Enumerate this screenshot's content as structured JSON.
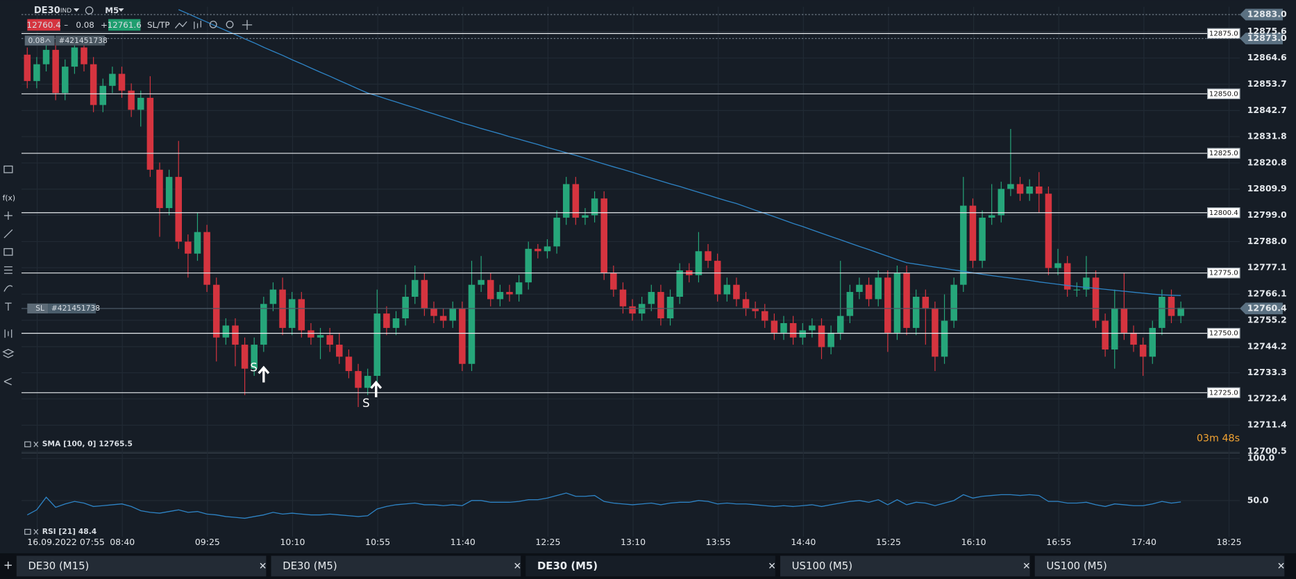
{
  "toolbar": {
    "symbol": "DE30",
    "market": "IND",
    "timeframe": "M5",
    "sell": "12760.4",
    "volume": "0.08",
    "buy": "12761.6",
    "sltp": "SL/TP",
    "position": "0.08",
    "position_id": "#421451738",
    "fx": "f(x)"
  },
  "chart_data": {
    "type": "candlestick",
    "colors": {
      "up": "#26a67a",
      "down": "#d5343f",
      "sma": "#2e84c6",
      "rsi": "#2e84c6",
      "price_line": "#e8ecef",
      "countdown": "#f0a232"
    },
    "ylim": [
      12700,
      12886
    ],
    "yticks": [
      12875.6,
      12864.6,
      12853.7,
      12842.7,
      12831.8,
      12820.8,
      12809.9,
      {
        "value": 12799,
        "label": "12799.0"
      },
      {
        "value": 12788,
        "label": "12788.0"
      },
      12777.1,
      12766.1,
      12755.2,
      12744.2,
      12733.3,
      12722.4,
      12711.4,
      12700.5
    ],
    "xticks": [
      "16.09.2022 07:55",
      "08:40",
      "09:25",
      "10:10",
      "10:55",
      "11:40",
      "12:25",
      "13:10",
      "13:55",
      "14:40",
      "15:25",
      "16:10",
      "16:55",
      "17:40",
      "18:25"
    ],
    "grid": true,
    "candles": [
      [
        12866,
        12869,
        12852,
        12855
      ],
      [
        12855,
        12865,
        12852,
        12862
      ],
      [
        12862,
        12872,
        12859,
        12868
      ],
      [
        12868,
        12871,
        12847,
        12850
      ],
      [
        12850,
        12864,
        12847,
        12861
      ],
      [
        12861,
        12872,
        12858,
        12869
      ],
      [
        12869,
        12872,
        12859,
        12862
      ],
      [
        12862,
        12865,
        12842,
        12845
      ],
      [
        12845,
        12856,
        12842,
        12853
      ],
      [
        12853,
        12861,
        12850,
        12858
      ],
      [
        12858,
        12861,
        12848,
        12851
      ],
      [
        12851,
        12854,
        12840,
        12843
      ],
      [
        12843,
        12851,
        12836,
        12848
      ],
      [
        12848,
        12857,
        12815,
        12818
      ],
      [
        12818,
        12821,
        12790,
        12802
      ],
      [
        12802,
        12818,
        12799,
        12815
      ],
      [
        12815,
        12830,
        12785,
        12788
      ],
      [
        12788,
        12791,
        12773,
        12783
      ],
      [
        12783,
        12800,
        12780,
        12792
      ],
      [
        12792,
        12795,
        12767,
        12770
      ],
      [
        12770,
        12773,
        12738,
        12748
      ],
      [
        12748,
        12756,
        12745,
        12753
      ],
      [
        12753,
        12756,
        12736,
        12745
      ],
      [
        12745,
        12748,
        12724,
        12735
      ],
      [
        12735,
        12748,
        12732,
        12745
      ],
      [
        12745,
        12765,
        12742,
        12762
      ],
      [
        12762,
        12771,
        12759,
        12768
      ],
      [
        12768,
        12773,
        12749,
        12752
      ],
      [
        12752,
        12767,
        12749,
        12764
      ],
      [
        12764,
        12767,
        12748,
        12751
      ],
      [
        12751,
        12754,
        12745,
        12748
      ],
      [
        12748,
        12752,
        12739,
        12749
      ],
      [
        12749,
        12752,
        12742,
        12745
      ],
      [
        12745,
        12750,
        12737,
        12740
      ],
      [
        12740,
        12743,
        12731,
        12734
      ],
      [
        12734,
        12737,
        12719,
        12727
      ],
      [
        12727,
        12735,
        12724,
        12732
      ],
      [
        12732,
        12768,
        12729,
        12758
      ],
      [
        12758,
        12761,
        12749,
        12752
      ],
      [
        12752,
        12759,
        12749,
        12756
      ],
      [
        12756,
        12770,
        12753,
        12765
      ],
      [
        12765,
        12778,
        12762,
        12772
      ],
      [
        12772,
        12775,
        12757,
        12760
      ],
      [
        12760,
        12763,
        12754,
        12757
      ],
      [
        12757,
        12760,
        12752,
        12755
      ],
      [
        12755,
        12763,
        12752,
        12760
      ],
      [
        12760,
        12763,
        12734,
        12737
      ],
      [
        12737,
        12780,
        12734,
        12770
      ],
      [
        12770,
        12782,
        12767,
        12772
      ],
      [
        12772,
        12775,
        12761,
        12764
      ],
      [
        12764,
        12770,
        12761,
        12767
      ],
      [
        12767,
        12770,
        12763,
        12766
      ],
      [
        12766,
        12774,
        12763,
        12771
      ],
      [
        12771,
        12788,
        12768,
        12785
      ],
      [
        12785,
        12787,
        12781,
        12784
      ],
      [
        12784,
        12789,
        12781,
        12786
      ],
      [
        12786,
        12801,
        12783,
        12798
      ],
      [
        12798,
        12815,
        12795,
        12812
      ],
      [
        12812,
        12815,
        12795,
        12798
      ],
      [
        12798,
        12802,
        12795,
        12799
      ],
      [
        12799,
        12809,
        12796,
        12806
      ],
      [
        12806,
        12809,
        12772,
        12775
      ],
      [
        12775,
        12778,
        12765,
        12768
      ],
      [
        12768,
        12771,
        12758,
        12761
      ],
      [
        12761,
        12764,
        12755,
        12758
      ],
      [
        12758,
        12765,
        12755,
        12762
      ],
      [
        12762,
        12770,
        12759,
        12767
      ],
      [
        12767,
        12770,
        12753,
        12756
      ],
      [
        12756,
        12768,
        12753,
        12765
      ],
      [
        12765,
        12779,
        12762,
        12776
      ],
      [
        12776,
        12779,
        12771,
        12774
      ],
      [
        12774,
        12792,
        12771,
        12784
      ],
      [
        12784,
        12787,
        12777,
        12780
      ],
      [
        12780,
        12783,
        12763,
        12766
      ],
      [
        12766,
        12773,
        12763,
        12770
      ],
      [
        12770,
        12773,
        12761,
        12764
      ],
      [
        12764,
        12767,
        12757,
        12760
      ],
      [
        12760,
        12763,
        12756,
        12759
      ],
      [
        12759,
        12762,
        12752,
        12755
      ],
      [
        12755,
        12758,
        12747,
        12750
      ],
      [
        12750,
        12757,
        12747,
        12754
      ],
      [
        12754,
        12757,
        12745,
        12748
      ],
      [
        12748,
        12754,
        12745,
        12751
      ],
      [
        12751,
        12756,
        12748,
        12753
      ],
      [
        12753,
        12756,
        12739,
        12744
      ],
      [
        12744,
        12753,
        12741,
        12750
      ],
      [
        12750,
        12780,
        12747,
        12757
      ],
      [
        12757,
        12770,
        12754,
        12767
      ],
      [
        12767,
        12773,
        12764,
        12770
      ],
      [
        12770,
        12773,
        12761,
        12764
      ],
      [
        12764,
        12776,
        12761,
        12773
      ],
      [
        12773,
        12776,
        12742,
        12750
      ],
      [
        12750,
        12778,
        12747,
        12775
      ],
      [
        12775,
        12778,
        12749,
        12752
      ],
      [
        12752,
        12768,
        12749,
        12765
      ],
      [
        12765,
        12768,
        12745,
        12760
      ],
      [
        12760,
        12763,
        12734,
        12740
      ],
      [
        12740,
        12766,
        12737,
        12755
      ],
      [
        12755,
        12773,
        12752,
        12770
      ],
      [
        12770,
        12815,
        12767,
        12803
      ],
      [
        12803,
        12806,
        12777,
        12780
      ],
      [
        12780,
        12801,
        12777,
        12798
      ],
      [
        12798,
        12812,
        12795,
        12799
      ],
      [
        12799,
        12813,
        12796,
        12810
      ],
      [
        12810,
        12835,
        12807,
        12812
      ],
      [
        12812,
        12815,
        12805,
        12808
      ],
      [
        12808,
        12814,
        12805,
        12811
      ],
      [
        12811,
        12817,
        12800,
        12808
      ],
      [
        12808,
        12811,
        12774,
        12777
      ],
      [
        12777,
        12785,
        12774,
        12779
      ],
      [
        12779,
        12782,
        12765,
        12768
      ],
      [
        12768,
        12771,
        12765,
        12768
      ],
      [
        12768,
        12782,
        12765,
        12773
      ],
      [
        12773,
        12776,
        12752,
        12755
      ],
      [
        12755,
        12758,
        12740,
        12743
      ],
      [
        12743,
        12768,
        12735,
        12760
      ],
      [
        12760,
        12775,
        12747,
        12750
      ],
      [
        12750,
        12753,
        12742,
        12745
      ],
      [
        12745,
        12748,
        12732,
        12740
      ],
      [
        12740,
        12755,
        12737,
        12752
      ],
      [
        12752,
        12768,
        12749,
        12765
      ],
      [
        12765,
        12768,
        12754,
        12757
      ],
      [
        12757,
        12763,
        12754,
        12760.4
      ]
    ],
    "sma": {
      "name": "SMA [100, 0]",
      "value": 12765.5,
      "values": [
        null,
        null,
        null,
        null,
        null,
        null,
        null,
        null,
        null,
        null,
        null,
        null,
        null,
        null,
        null,
        null,
        12884.8,
        12883.1,
        12881.3,
        12879.6,
        12877.8,
        12876.1,
        12874.4,
        12872.6,
        12870.9,
        12869.1,
        12867.4,
        12865.7,
        12863.9,
        12862.2,
        12860.4,
        12858.7,
        12857.0,
        12855.2,
        12853.5,
        12851.7,
        12850.0,
        12848.8,
        12847.5,
        12846.3,
        12845.0,
        12843.8,
        12842.5,
        12841.3,
        12840.0,
        12838.8,
        12837.5,
        12836.4,
        12835.2,
        12834.1,
        12833.0,
        12831.8,
        12830.7,
        12829.6,
        12828.5,
        12827.3,
        12826.2,
        12825.1,
        12824.0,
        12822.8,
        12821.6,
        12820.4,
        12819.2,
        12818.1,
        12816.9,
        12815.7,
        12814.5,
        12813.3,
        12812.1,
        12811.0,
        12809.8,
        12808.6,
        12807.4,
        12806.2,
        12805.0,
        12803.9,
        12802.5,
        12801.1,
        12799.8,
        12798.4,
        12797.0,
        12795.6,
        12794.3,
        12792.9,
        12791.5,
        12790.1,
        12788.8,
        12787.4,
        12786.0,
        12784.7,
        12783.3,
        12781.9,
        12780.5,
        12779.2,
        12778.6,
        12778.0,
        12777.4,
        12776.8,
        12776.2,
        12775.6,
        12775.0,
        12774.4,
        12773.8,
        12773.3,
        12772.8,
        12772.3,
        12771.8,
        12771.2,
        12770.7,
        12770.2,
        12769.7,
        12769.3,
        12768.9,
        12768.5,
        12768.1,
        12767.7,
        12767.3,
        12766.9,
        12766.5,
        12766.1,
        12765.8,
        12765.6,
        12765.5
      ]
    },
    "price_lines": [
      {
        "value": 12875,
        "label": "12875.0"
      },
      {
        "value": 12850,
        "label": "12850.0"
      },
      {
        "value": 12825,
        "label": "12825.0"
      },
      12800.4,
      {
        "value": 12775,
        "label": "12775.0"
      },
      {
        "value": 12750,
        "label": "12750.0"
      },
      {
        "value": 12725,
        "label": "12725.0"
      }
    ],
    "markers": [
      {
        "value": 12883,
        "label": "12883.0"
      },
      {
        "value": 12873,
        "label": "12873.0"
      }
    ],
    "current_price": 12760.4,
    "stop_loss": {
      "tag": "SL",
      "id": "#421451738"
    },
    "signals": [
      "S",
      "S"
    ],
    "countdown": "03m 48s",
    "rsi": {
      "name": "RSI [21]",
      "value": 48.4,
      "ylim": [
        7,
        107
      ],
      "yticks": [
        {
          "value": 100,
          "label": "100.0"
        },
        {
          "value": 50,
          "label": "50.0"
        }
      ],
      "values": [
        33,
        39,
        54,
        42,
        46,
        49,
        47,
        43,
        44,
        45,
        46,
        43,
        38,
        36,
        35,
        37,
        39,
        36,
        37,
        34,
        33,
        31,
        30,
        29,
        31,
        33,
        36,
        34,
        35,
        34,
        33,
        33,
        34,
        33,
        32,
        31,
        32,
        40,
        43,
        45,
        46,
        47,
        45,
        45,
        44,
        45,
        44,
        50,
        50,
        48,
        48,
        48,
        49,
        51,
        51,
        53,
        56,
        59,
        55,
        55,
        56,
        49,
        47,
        46,
        45,
        46,
        47,
        45,
        47,
        48,
        48,
        50,
        49,
        46,
        47,
        46,
        46,
        45,
        44,
        43,
        44,
        43,
        44,
        45,
        43,
        45,
        47,
        49,
        50,
        48,
        51,
        45,
        51,
        45,
        48,
        47,
        44,
        47,
        50,
        57,
        53,
        55,
        56,
        57,
        57,
        56,
        57,
        56,
        49,
        49,
        47,
        47,
        48,
        45,
        43,
        46,
        45,
        44,
        44,
        46,
        49,
        47,
        48.4
      ]
    }
  },
  "tabs": [
    "DE30 (M15)",
    "DE30 (M5)",
    "DE30 (M5)",
    "US100 (M5)",
    "US100 (M5)"
  ],
  "active_tab": 2
}
